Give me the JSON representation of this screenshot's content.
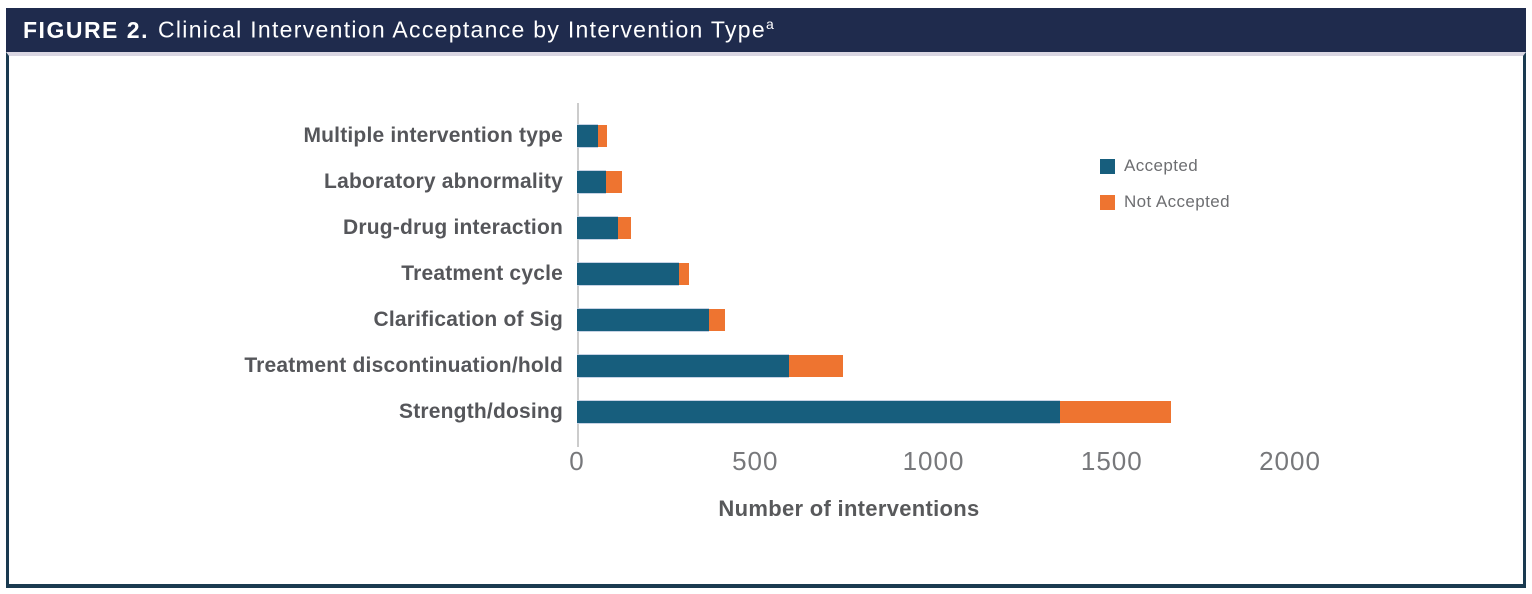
{
  "header": {
    "figure_label": "FIGURE 2.",
    "title": "Clinical Intervention Acceptance by Intervention Type",
    "footnote_marker": "a"
  },
  "chart_data": {
    "type": "bar",
    "orientation": "horizontal",
    "stacked": true,
    "title": "Clinical Intervention Acceptance by Intervention Type",
    "categories": [
      "Multiple intervention type",
      "Laboratory abnormality",
      "Drug-drug interaction",
      "Treatment cycle",
      "Clarification of Sig",
      "Treatment discontinuation/hold",
      "Strength/dosing"
    ],
    "series": [
      {
        "name": "Accepted",
        "color": "#175e7d",
        "values": [
          60,
          80,
          115,
          285,
          370,
          595,
          1355
        ]
      },
      {
        "name": "Not Accepted",
        "color": "#ee7430",
        "values": [
          25,
          45,
          35,
          30,
          45,
          150,
          310
        ]
      }
    ],
    "xlabel": "Number of interventions",
    "ylabel": "",
    "x_ticks": [
      0,
      500,
      1000,
      1500,
      2000
    ],
    "xlim": [
      0,
      2000
    ],
    "legend_position": "right-inside",
    "grid": false
  },
  "colors": {
    "header_bg": "#1f2b4d",
    "header_text": "#ffffff",
    "box_border": "#1a3a50",
    "box_top_shadow": "#d9d6e2",
    "axis_line": "#cccccc",
    "tick_text": "#77787b",
    "category_text": "#55565a"
  }
}
